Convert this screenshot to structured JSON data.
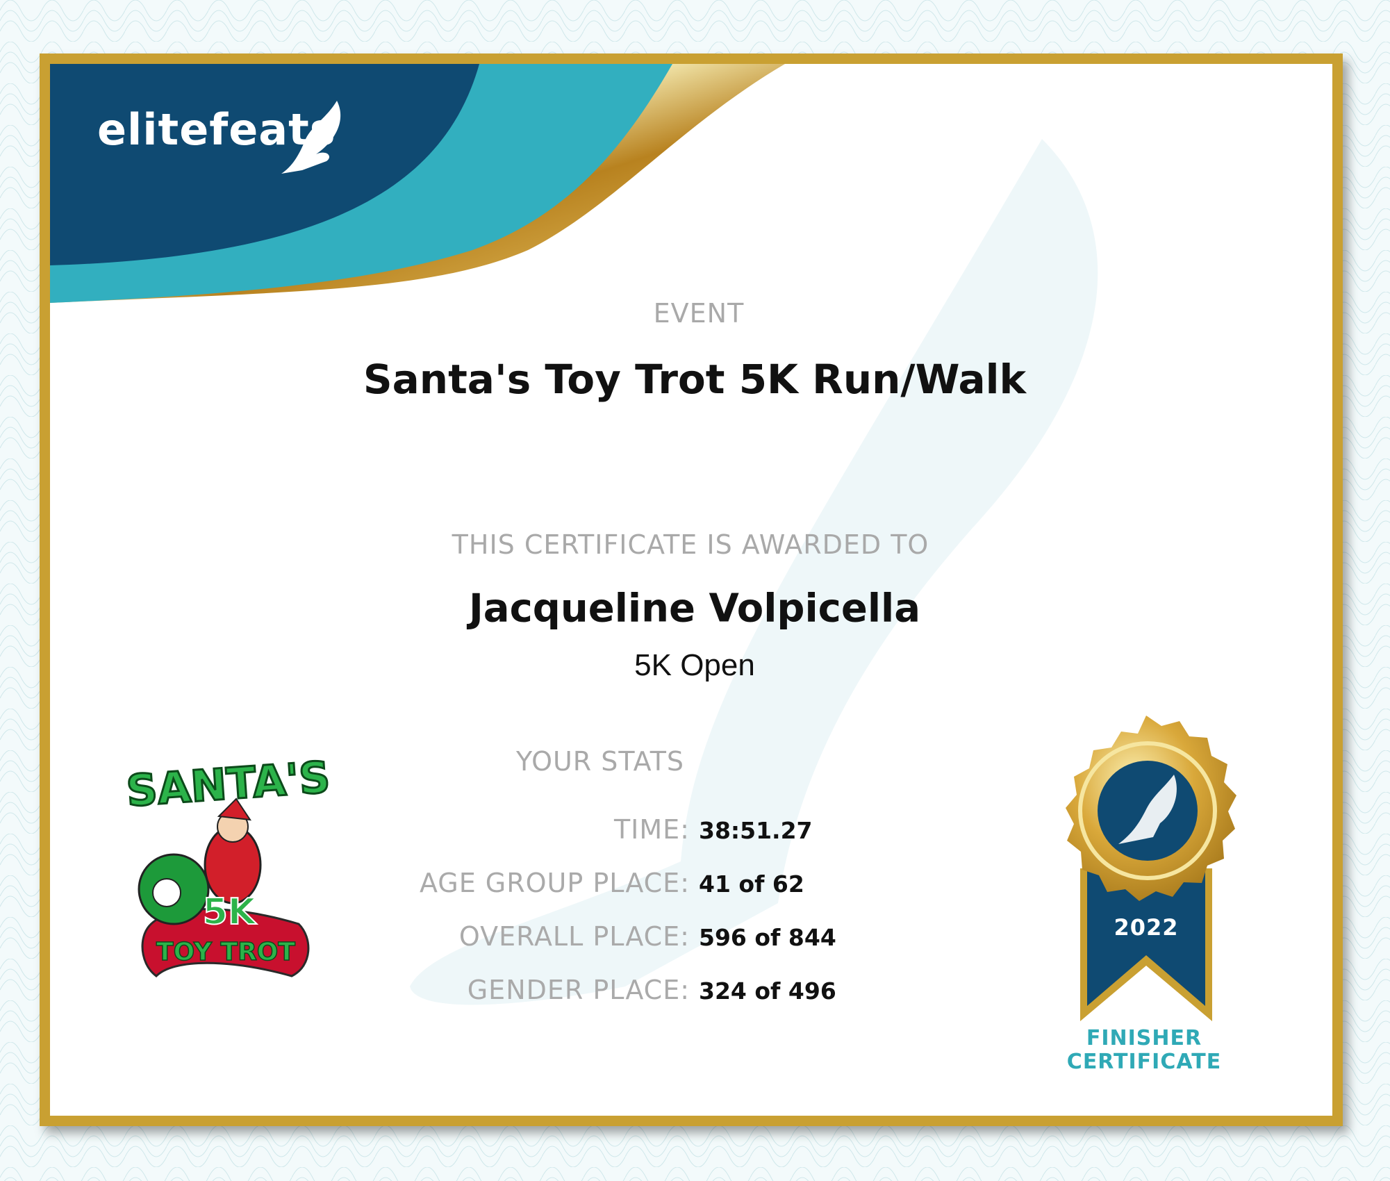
{
  "brand": {
    "logo_text": "elitefeats"
  },
  "event": {
    "label": "EVENT",
    "name": "Santa's Toy Trot 5K Run/Walk"
  },
  "award": {
    "label": "THIS CERTIFICATE IS AWARDED TO",
    "name": "Jacqueline Volpicella",
    "division": "5K Open"
  },
  "stats": {
    "heading": "YOUR STATS",
    "rows": [
      {
        "label": "TIME:",
        "value": "38:51.27"
      },
      {
        "label": "AGE GROUP PLACE:",
        "value": "41 of 62"
      },
      {
        "label": "OVERALL PLACE:",
        "value": "596 of 844"
      },
      {
        "label": "GENDER PLACE:",
        "value": "324 of 496"
      }
    ]
  },
  "event_logo": {
    "text_top": "SANTA'S",
    "text_mid": "5K",
    "text_bottom": "TOY TROT"
  },
  "badge": {
    "year": "2022",
    "line1": "FINISHER",
    "line2": "CERTIFICATE"
  },
  "colors": {
    "navy": "#0f4a72",
    "teal": "#32afbf",
    "gold": "#c9a032",
    "label_gray": "#a9a9a9"
  }
}
